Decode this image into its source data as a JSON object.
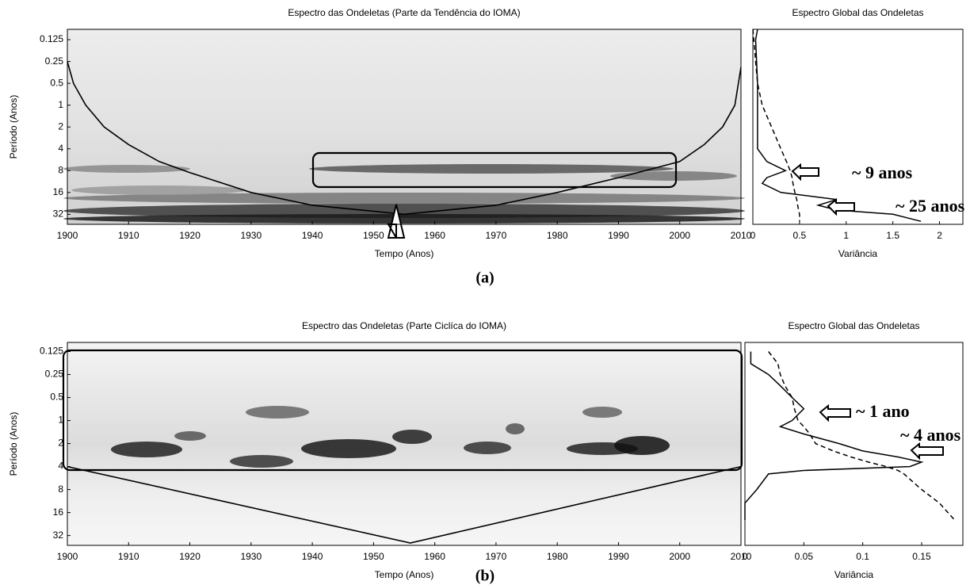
{
  "chart_data": [
    {
      "type": "wavelet",
      "title": "Espectro das Ondeletas (Parte da Tendência do IOMA)",
      "x_label": "Tempo (Anos)",
      "y_label": "Período (Anos)",
      "panel_label": "(a)",
      "xlim": [
        1900,
        2010
      ],
      "xticks": [
        1900,
        1910,
        1920,
        1930,
        1940,
        1950,
        1960,
        1970,
        1980,
        1990,
        2000,
        2010
      ],
      "ylim": [
        0.09,
        44
      ],
      "yticks": [
        0.125,
        0.25,
        0.5,
        1,
        2,
        4,
        8,
        16,
        32
      ],
      "y_log_base": 2,
      "y_inverted": true,
      "cone_of_influence": {
        "x": [
          1900,
          1901,
          1903,
          1906,
          1910,
          1915,
          1920,
          1930,
          1940,
          1955,
          1970,
          1980,
          1990,
          2000,
          2004,
          2007,
          2009,
          2010
        ],
        "y": [
          0.25,
          0.5,
          1,
          2,
          3.5,
          6,
          8.5,
          16,
          24,
          32,
          24,
          16,
          10,
          6,
          3.5,
          2,
          1,
          0.3
        ]
      }
    },
    {
      "type": "line",
      "title": "Espectro Global das Ondeletas",
      "x_label": "Variância",
      "xlim": [
        0,
        2.25
      ],
      "xticks": [
        0,
        0.5,
        1,
        1.5,
        2
      ],
      "ylim": [
        0.09,
        44
      ],
      "y_log_base": 2,
      "y_inverted": true,
      "periods": [
        0.09,
        0.125,
        0.25,
        0.5,
        1,
        2,
        4,
        6,
        8,
        10,
        12,
        16,
        20,
        24,
        28,
        32,
        40
      ],
      "series": [
        {
          "color": "#000000",
          "dash": false,
          "values": [
            0.05,
            0.03,
            0.04,
            0.05,
            0.05,
            0.05,
            0.05,
            0.15,
            0.35,
            0.15,
            0.1,
            0.3,
            0.9,
            0.7,
            0.9,
            1.5,
            1.8
          ]
        },
        {
          "color": "#000000",
          "dash": true,
          "values": [
            0.0,
            0.01,
            0.03,
            0.05,
            0.1,
            0.2,
            0.3,
            0.36,
            0.4,
            0.42,
            0.43,
            0.45,
            0.47,
            0.48,
            0.49,
            0.5,
            0.5
          ]
        }
      ],
      "annotations": [
        "~ 9 anos",
        "~ 25 anos"
      ]
    },
    {
      "type": "wavelet",
      "title": "Espectro das Ondeletas (Parte Ciclíca do IOMA)",
      "x_label": "Tempo (Anos)",
      "y_label": "Período (Anos)",
      "panel_label": "(b)",
      "xlim": [
        1900,
        2010
      ],
      "xticks": [
        1900,
        1910,
        1920,
        1930,
        1940,
        1950,
        1960,
        1970,
        1980,
        1990,
        2000,
        2010
      ],
      "ylim": [
        0.095,
        43
      ],
      "yticks": [
        0.125,
        0.25,
        0.5,
        1,
        2,
        4,
        8,
        16,
        32
      ],
      "y_log_base": 2,
      "y_inverted": true,
      "cone_of_influence": {
        "x": [
          1900,
          1956,
          2010
        ],
        "y": [
          4,
          40,
          4
        ]
      }
    },
    {
      "type": "line",
      "title": "Espectro Global das Ondeletas",
      "x_label": "Variância",
      "xlim": [
        0,
        0.185
      ],
      "xticks": [
        0,
        0.05,
        0.1,
        0.15
      ],
      "ylim": [
        0.095,
        43
      ],
      "y_log_base": 2,
      "y_inverted": true,
      "periods": [
        0.125,
        0.18,
        0.25,
        0.35,
        0.5,
        0.7,
        1,
        1.2,
        1.5,
        2,
        2.5,
        3,
        3.5,
        4,
        4.5,
        5,
        8,
        12,
        20
      ],
      "series": [
        {
          "color": "#000000",
          "dash": false,
          "values": [
            0.005,
            0.005,
            0.02,
            0.03,
            0.04,
            0.05,
            0.04,
            0.03,
            0.05,
            0.08,
            0.1,
            0.13,
            0.15,
            0.14,
            0.05,
            0.02,
            0.01,
            0.0,
            0.0
          ]
        },
        {
          "color": "#000000",
          "dash": true,
          "values": [
            0.02,
            0.028,
            0.03,
            0.034,
            0.04,
            0.042,
            0.045,
            0.05,
            0.055,
            0.06,
            0.075,
            0.09,
            0.105,
            0.12,
            0.13,
            0.135,
            0.15,
            0.165,
            0.178
          ]
        }
      ],
      "annotations": [
        "~ 1 ano",
        "~ 4 anos"
      ]
    }
  ]
}
